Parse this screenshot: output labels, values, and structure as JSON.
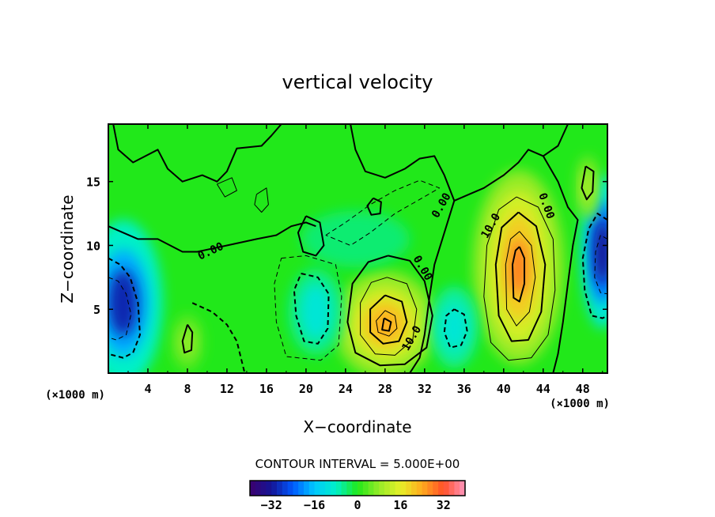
{
  "chart_data": {
    "type": "heatmap",
    "title": "vertical velocity",
    "xlabel": "X−coordinate",
    "ylabel": "Z−coordinate",
    "x_unit": "(×1000 m)",
    "y_unit": "(×1000 m)",
    "xlim": [
      0,
      50.5
    ],
    "ylim": [
      0,
      19.5
    ],
    "x_ticks": [
      "4",
      "8",
      "12",
      "16",
      "20",
      "24",
      "28",
      "32",
      "36",
      "40",
      "44",
      "48"
    ],
    "x_tick_values": [
      4,
      8,
      12,
      16,
      20,
      24,
      28,
      32,
      36,
      40,
      44,
      48
    ],
    "y_ticks": [
      "5",
      "10",
      "15"
    ],
    "y_tick_values": [
      5,
      10,
      15
    ],
    "contour_interval_text": "CONTOUR INTERVAL = 5.000E+00",
    "contour_labels": [
      {
        "text": "0.00",
        "x": 10.5,
        "y": 9.3,
        "angle": -25
      },
      {
        "text": "0.00",
        "x": 34.0,
        "y": 13.0,
        "angle": -60
      },
      {
        "text": "0.00",
        "x": 31.5,
        "y": 8.1,
        "angle": 60
      },
      {
        "text": "10.0",
        "x": 39.0,
        "y": 11.4,
        "angle": -60
      },
      {
        "text": "0.00",
        "x": 44.0,
        "y": 13.0,
        "angle": 70
      },
      {
        "text": "10.0",
        "x": 31.0,
        "y": 2.6,
        "angle": -60
      }
    ],
    "features": [
      {
        "name": "updraft-core-28km",
        "x": 28.0,
        "z": 3.8,
        "value": 24
      },
      {
        "name": "updraft-core-42km",
        "x": 41.5,
        "z": 8.3,
        "value": 28
      },
      {
        "name": "downdraft-left-edge",
        "x": 1.5,
        "z": 5.5,
        "value": -36
      },
      {
        "name": "downdraft-right-edge",
        "x": 50.0,
        "z": 9.5,
        "value": -34
      },
      {
        "name": "downdraft-35km",
        "x": 35.0,
        "z": 3.6,
        "value": -10
      },
      {
        "name": "downdraft-20km",
        "x": 21.0,
        "z": 4.8,
        "value": -10
      },
      {
        "name": "downdraft-upper-diagonal",
        "x": 25.0,
        "z": 10.5,
        "value": -7
      },
      {
        "name": "updraft-upper-right",
        "x": 48.5,
        "z": 14.5,
        "value": 10
      },
      {
        "name": "updraft-low-8km",
        "x": 8.0,
        "z": 2.4,
        "value": 8
      }
    ],
    "colorbar": {
      "min": -40,
      "max": 40,
      "tick_labels": [
        "−32",
        "−16",
        "0",
        "16",
        "32"
      ],
      "tick_values": [
        -32,
        -16,
        0,
        16,
        32
      ]
    },
    "colors": {
      "neutral": "#21e81a",
      "contour_line": "#000000"
    }
  }
}
